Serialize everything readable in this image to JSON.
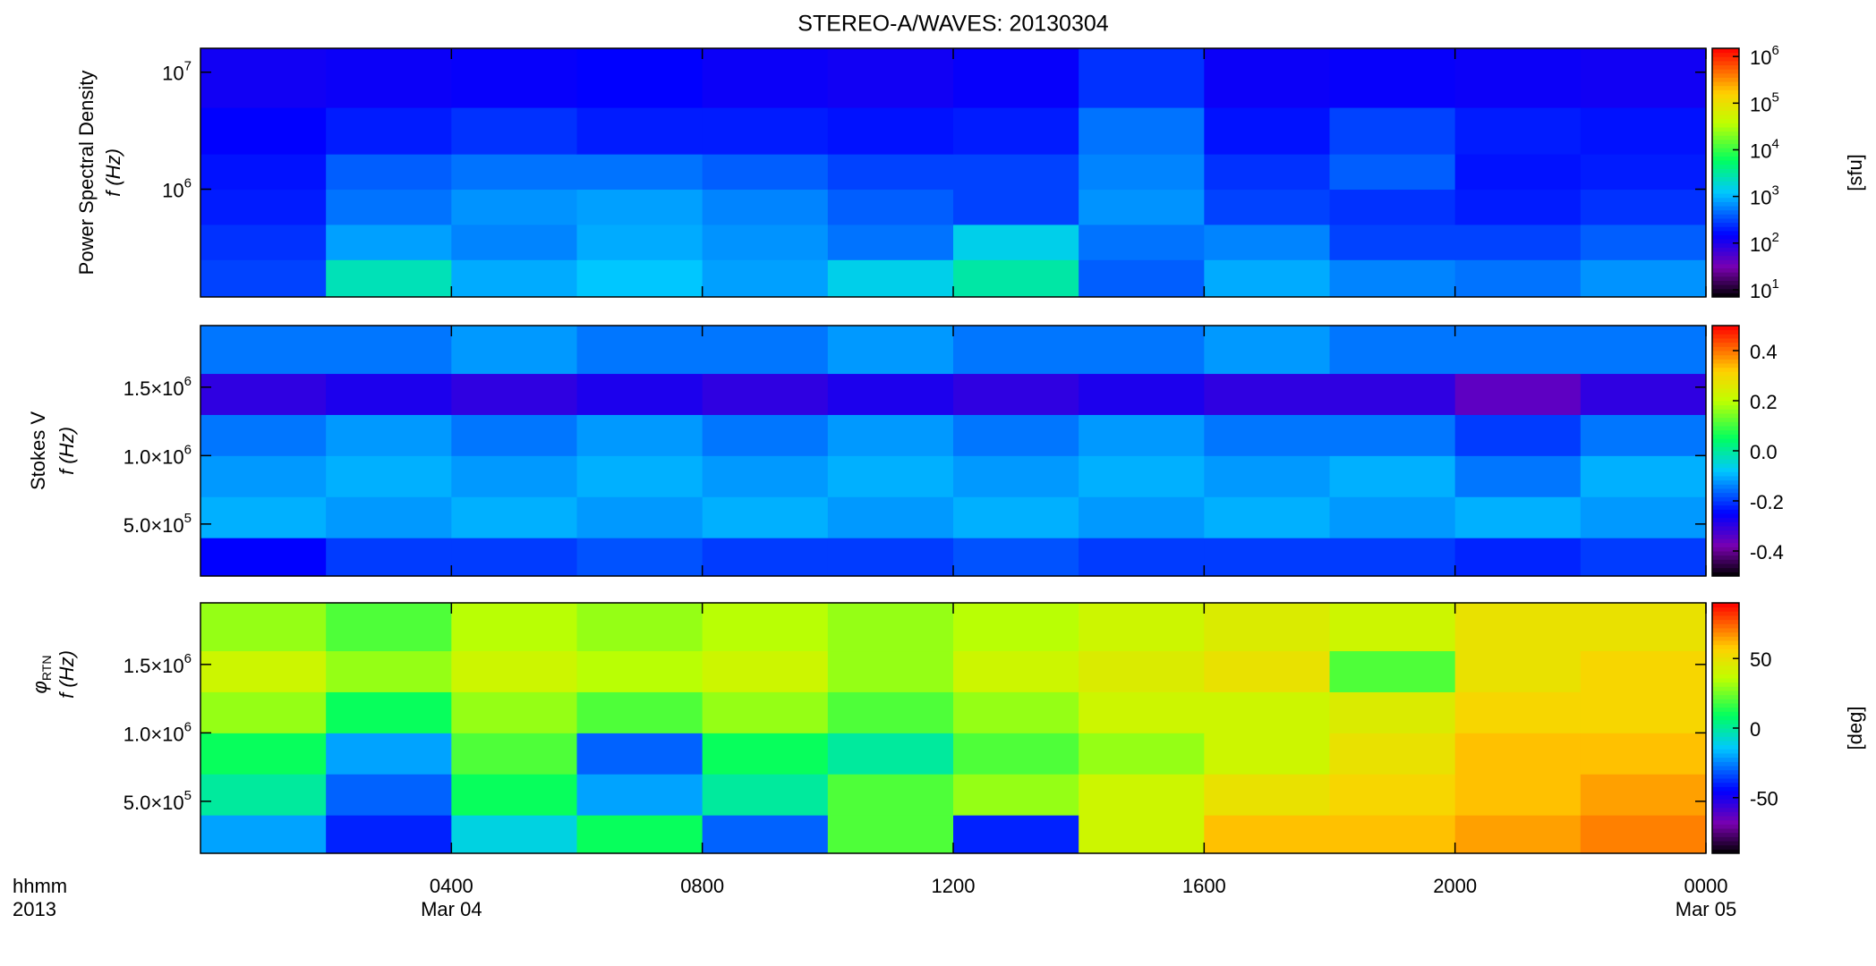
{
  "chart_data": {
    "type": "spectrogram",
    "title": "STEREO-A/WAVES: 20130304",
    "colormap": "rainbow",
    "xlim": [
      0,
      24
    ],
    "xticks": [
      {
        "value": 4,
        "label": "0400"
      },
      {
        "value": 8,
        "label": "0800"
      },
      {
        "value": 12,
        "label": "1200"
      },
      {
        "value": 16,
        "label": "1600"
      },
      {
        "value": 20,
        "label": "2000"
      },
      {
        "value": 24,
        "label": "0000"
      }
    ],
    "date_labels": [
      {
        "value": 4,
        "label": "Mar 04"
      },
      {
        "value": 24,
        "label": "Mar 05"
      }
    ],
    "corner_labels": [
      "hhmm",
      "2013"
    ],
    "time_bins": [
      0,
      2,
      4,
      6,
      8,
      10,
      12,
      14,
      16,
      18,
      20,
      22,
      24
    ],
    "panels": [
      {
        "ylabel": [
          "Power Spectral Density",
          "f (Hz)"
        ],
        "log_y": true,
        "log_color": true,
        "ylim": [
          120000,
          16000000
        ],
        "yticks": [
          {
            "value": 1000000,
            "label": "10",
            "exponent": "6"
          },
          {
            "value": 10000000,
            "label": "10",
            "exponent": "7"
          }
        ],
        "freq_bins": [
          120000,
          250000,
          500000,
          1000000,
          2000000,
          5000000,
          16000000
        ],
        "clim": [
          7,
          1500000
        ],
        "colorbar_label": "[sfu]",
        "cticks": [
          {
            "value": 10,
            "label": "10",
            "exponent": "1"
          },
          {
            "value": 100,
            "label": "10",
            "exponent": "2"
          },
          {
            "value": 1000,
            "label": "10",
            "exponent": "3"
          },
          {
            "value": 10000,
            "label": "10",
            "exponent": "4"
          },
          {
            "value": 100000,
            "label": "10",
            "exponent": "5"
          },
          {
            "value": 1000000,
            "label": "10",
            "exponent": "6"
          }
        ],
        "z": [
          [
            300,
            2500,
            900,
            1200,
            800,
            1500,
            3000,
            400,
            900,
            600,
            500,
            700
          ],
          [
            250,
            800,
            600,
            900,
            700,
            500,
            1500,
            500,
            600,
            300,
            300,
            400
          ],
          [
            200,
            500,
            700,
            800,
            600,
            400,
            300,
            700,
            300,
            250,
            200,
            250
          ],
          [
            180,
            400,
            500,
            500,
            400,
            300,
            300,
            600,
            250,
            400,
            180,
            200
          ],
          [
            150,
            200,
            250,
            200,
            200,
            180,
            200,
            500,
            180,
            300,
            200,
            180
          ],
          [
            120,
            130,
            140,
            150,
            130,
            120,
            140,
            250,
            130,
            140,
            130,
            120
          ]
        ]
      },
      {
        "ylabel": [
          "Stokes V",
          "f (Hz)"
        ],
        "log_y": false,
        "log_color": false,
        "ylim": [
          120000,
          1950000
        ],
        "yticks": [
          {
            "value": 500000,
            "label": "5.0×10",
            "exponent": "5"
          },
          {
            "value": 1000000,
            "label": "1.0×10",
            "exponent": "6"
          },
          {
            "value": 1500000,
            "label": "1.5×10",
            "exponent": "6"
          }
        ],
        "freq_bins": [
          120000,
          400000,
          700000,
          1000000,
          1300000,
          1600000,
          1950000
        ],
        "clim": [
          -0.5,
          0.5
        ],
        "cticks": [
          -0.4,
          -0.2,
          {
            "value": 0,
            "label": "0.0"
          },
          0.2,
          0.4
        ],
        "z": [
          [
            -0.25,
            -0.2,
            -0.2,
            -0.18,
            -0.2,
            -0.2,
            -0.18,
            -0.2,
            -0.2,
            -0.2,
            -0.22,
            -0.2
          ],
          [
            -0.1,
            -0.12,
            -0.1,
            -0.12,
            -0.1,
            -0.12,
            -0.1,
            -0.12,
            -0.1,
            -0.12,
            -0.1,
            -0.12
          ],
          [
            -0.12,
            -0.1,
            -0.12,
            -0.1,
            -0.12,
            -0.1,
            -0.12,
            -0.1,
            -0.12,
            -0.1,
            -0.15,
            -0.1
          ],
          [
            -0.15,
            -0.12,
            -0.15,
            -0.12,
            -0.15,
            -0.12,
            -0.15,
            -0.12,
            -0.15,
            -0.15,
            -0.2,
            -0.15
          ],
          [
            -0.3,
            -0.28,
            -0.3,
            -0.28,
            -0.3,
            -0.28,
            -0.3,
            -0.28,
            -0.3,
            -0.3,
            -0.35,
            -0.3
          ],
          [
            -0.15,
            -0.15,
            -0.12,
            -0.15,
            -0.15,
            -0.12,
            -0.15,
            -0.15,
            -0.12,
            -0.15,
            -0.15,
            -0.15
          ]
        ]
      },
      {
        "ylabel": [
          "φ",
          "RTN",
          "f (Hz)"
        ],
        "log_y": false,
        "log_color": false,
        "ylim": [
          120000,
          1950000
        ],
        "yticks": [
          {
            "value": 500000,
            "label": "5.0×10",
            "exponent": "5"
          },
          {
            "value": 1000000,
            "label": "1.0×10",
            "exponent": "6"
          },
          {
            "value": 1500000,
            "label": "1.5×10",
            "exponent": "6"
          }
        ],
        "freq_bins": [
          120000,
          400000,
          700000,
          1000000,
          1300000,
          1600000,
          1950000
        ],
        "clim": [
          -90,
          90
        ],
        "colorbar_label": "[deg]",
        "cticks": [
          -50,
          0,
          50
        ],
        "z": [
          [
            -20,
            -40,
            -10,
            10,
            -30,
            20,
            -40,
            40,
            60,
            60,
            65,
            70
          ],
          [
            0,
            -30,
            10,
            -20,
            0,
            20,
            30,
            40,
            50,
            55,
            60,
            65
          ],
          [
            10,
            -20,
            20,
            -30,
            10,
            0,
            20,
            30,
            40,
            50,
            60,
            60
          ],
          [
            30,
            10,
            30,
            20,
            30,
            20,
            30,
            40,
            40,
            45,
            55,
            55
          ],
          [
            40,
            30,
            40,
            35,
            40,
            30,
            40,
            45,
            50,
            20,
            50,
            55
          ],
          [
            30,
            20,
            35,
            30,
            35,
            30,
            35,
            40,
            45,
            40,
            50,
            50
          ]
        ]
      }
    ]
  }
}
